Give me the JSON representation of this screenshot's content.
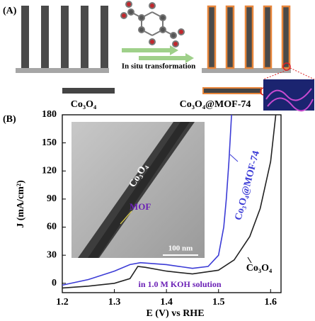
{
  "panel_a": {
    "label": "(A)",
    "arrow_text": "In situ transformation",
    "left_caption": "Co₃O₄",
    "right_caption": "Co₃O₄@MOF-74"
  },
  "chart_data": {
    "type": "line",
    "panel_label": "(B)",
    "x_label": "E (V) vs RHE",
    "y_label": "J (mA/cm²)",
    "xlim": [
      1.2,
      1.62
    ],
    "ylim": [
      -10,
      180
    ],
    "xticks": [
      1.2,
      1.3,
      1.4,
      1.5,
      1.6
    ],
    "yticks": [
      0,
      30,
      60,
      90,
      120,
      150,
      180
    ],
    "series": [
      {
        "name": "Co₃O₄@MOF-74",
        "color": "#3b3bd6",
        "x": [
          1.2,
          1.25,
          1.3,
          1.33,
          1.35,
          1.4,
          1.45,
          1.48,
          1.5,
          1.51,
          1.515,
          1.52,
          1.525
        ],
        "values": [
          -2,
          4,
          13,
          20,
          22,
          20,
          16,
          18,
          30,
          60,
          90,
          130,
          180
        ]
      },
      {
        "name": "Co₃O₄",
        "color": "#222222",
        "x": [
          1.2,
          1.25,
          1.3,
          1.33,
          1.345,
          1.36,
          1.4,
          1.45,
          1.5,
          1.53,
          1.56,
          1.58,
          1.6,
          1.61
        ],
        "values": [
          -5,
          -3,
          0,
          5,
          18,
          17,
          13,
          10,
          14,
          25,
          50,
          80,
          130,
          180
        ]
      }
    ],
    "annotation": "in 1.0 M KOH solution",
    "inset": {
      "rod_label": "Co₃O₄",
      "shell_label": "MOF",
      "scale_bar": "100 nm"
    }
  }
}
